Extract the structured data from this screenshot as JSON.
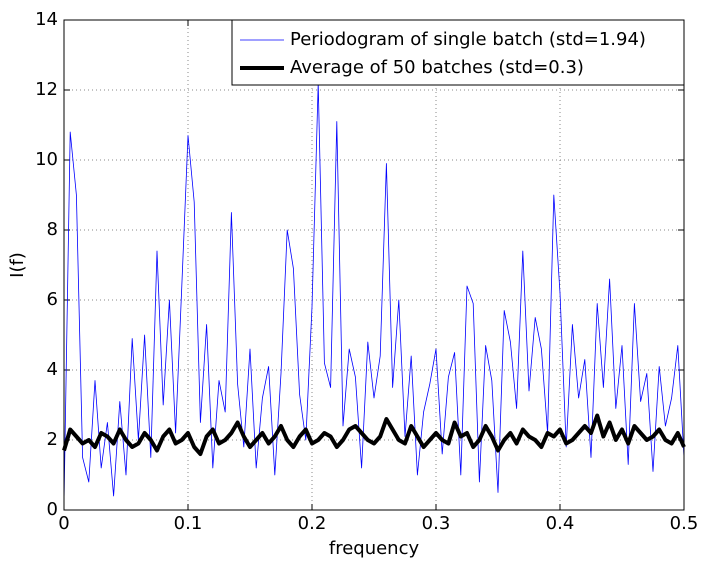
{
  "chart_data": {
    "type": "line",
    "xlabel": "frequency",
    "ylabel": "I(f)",
    "x": [
      0,
      0.005,
      0.01,
      0.015,
      0.02,
      0.025,
      0.03,
      0.035,
      0.04,
      0.045,
      0.05,
      0.055,
      0.06,
      0.065,
      0.07,
      0.075,
      0.08,
      0.085,
      0.09,
      0.095,
      0.1,
      0.105,
      0.11,
      0.115,
      0.12,
      0.125,
      0.13,
      0.135,
      0.14,
      0.145,
      0.15,
      0.155,
      0.16,
      0.165,
      0.17,
      0.175,
      0.18,
      0.185,
      0.19,
      0.195,
      0.2,
      0.205,
      0.21,
      0.215,
      0.22,
      0.225,
      0.23,
      0.235,
      0.24,
      0.245,
      0.25,
      0.255,
      0.26,
      0.265,
      0.27,
      0.275,
      0.28,
      0.285,
      0.29,
      0.295,
      0.3,
      0.305,
      0.31,
      0.315,
      0.32,
      0.325,
      0.33,
      0.335,
      0.34,
      0.345,
      0.35,
      0.355,
      0.36,
      0.365,
      0.37,
      0.375,
      0.38,
      0.385,
      0.39,
      0.395,
      0.4,
      0.405,
      0.41,
      0.415,
      0.42,
      0.425,
      0.43,
      0.435,
      0.44,
      0.445,
      0.45,
      0.455,
      0.46,
      0.465,
      0.47,
      0.475,
      0.48,
      0.485,
      0.49,
      0.495,
      0.5
    ],
    "series": [
      {
        "name": "Periodogram of single batch (std=1.94)",
        "color": "#0000ff",
        "linewidth": 0.8,
        "values": [
          0.2,
          10.8,
          9.0,
          1.5,
          0.8,
          3.7,
          1.2,
          2.5,
          0.4,
          3.1,
          1.0,
          4.9,
          2.0,
          5.0,
          1.5,
          7.4,
          3.0,
          6.0,
          2.2,
          6.4,
          10.7,
          8.8,
          2.5,
          5.3,
          1.2,
          3.7,
          2.8,
          8.5,
          3.6,
          1.8,
          4.6,
          1.2,
          3.2,
          4.1,
          1.0,
          3.9,
          8.0,
          6.9,
          3.3,
          2.0,
          5.8,
          12.2,
          4.2,
          3.5,
          11.1,
          2.4,
          4.6,
          3.8,
          1.2,
          4.8,
          3.2,
          4.4,
          9.9,
          3.5,
          6.0,
          2.1,
          4.4,
          1.0,
          2.8,
          3.6,
          4.6,
          1.6,
          3.8,
          4.5,
          1.0,
          6.4,
          5.9,
          0.8,
          4.7,
          3.7,
          0.5,
          5.7,
          4.8,
          2.9,
          7.4,
          3.4,
          5.5,
          4.6,
          2.2,
          9.0,
          6.2,
          1.8,
          5.3,
          3.2,
          4.3,
          1.5,
          5.9,
          3.5,
          6.6,
          2.9,
          4.7,
          1.3,
          5.9,
          3.1,
          3.9,
          1.1,
          4.1,
          2.4,
          3.2,
          4.7,
          1.5
        ]
      },
      {
        "name": "Average of 50 batches (std=0.3)",
        "color": "#000000",
        "linewidth": 4,
        "values": [
          1.7,
          2.3,
          2.1,
          1.9,
          2.0,
          1.8,
          2.2,
          2.1,
          1.9,
          2.3,
          2.0,
          1.8,
          1.9,
          2.2,
          2.0,
          1.7,
          2.1,
          2.3,
          1.9,
          2.0,
          2.2,
          1.8,
          1.6,
          2.1,
          2.3,
          1.9,
          2.0,
          2.2,
          2.5,
          2.1,
          1.8,
          2.0,
          2.2,
          1.9,
          2.1,
          2.4,
          2.0,
          1.8,
          2.1,
          2.3,
          1.9,
          2.0,
          2.2,
          2.1,
          1.8,
          2.0,
          2.3,
          2.4,
          2.2,
          2.0,
          1.9,
          2.1,
          2.6,
          2.3,
          2.0,
          1.9,
          2.4,
          2.1,
          1.8,
          2.0,
          2.2,
          2.0,
          1.9,
          2.5,
          2.1,
          2.2,
          1.8,
          2.0,
          2.4,
          2.1,
          1.7,
          2.0,
          2.2,
          1.9,
          2.3,
          2.1,
          2.0,
          1.8,
          2.2,
          2.1,
          2.3,
          1.9,
          2.0,
          2.2,
          2.4,
          2.2,
          2.7,
          2.1,
          2.5,
          2.0,
          2.3,
          1.9,
          2.4,
          2.2,
          2.0,
          2.1,
          2.3,
          2.0,
          1.9,
          2.2,
          1.8
        ]
      }
    ],
    "xlim": [
      0,
      0.5
    ],
    "xticks": [
      0,
      0.1,
      0.2,
      0.3,
      0.4,
      0.5
    ],
    "ylim": [
      0,
      14
    ],
    "yticks": [
      0,
      2,
      4,
      6,
      8,
      10,
      12,
      14
    ],
    "grid": true,
    "legend": "upper right"
  }
}
